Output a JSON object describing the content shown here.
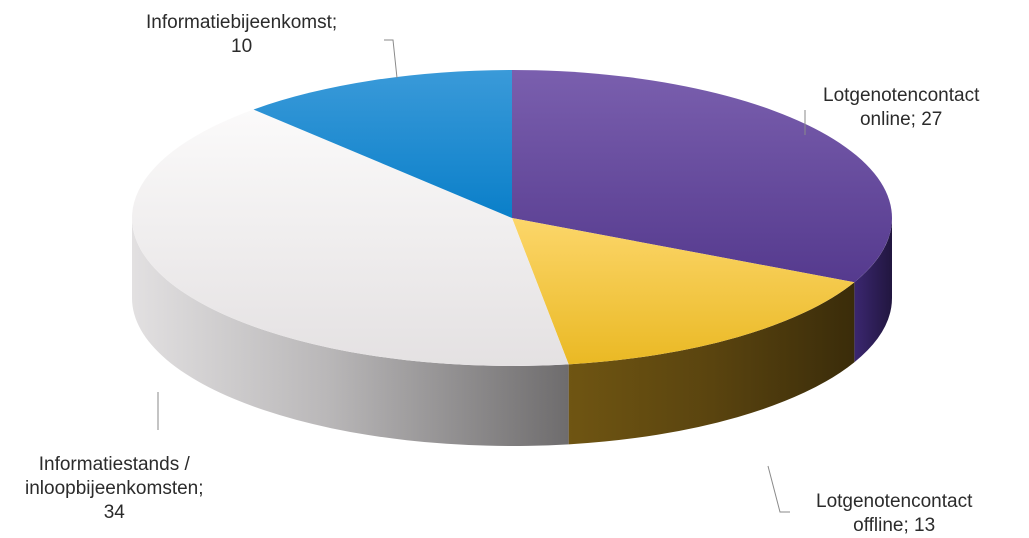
{
  "chart_data": {
    "type": "pie",
    "title": "",
    "slices": [
      {
        "label_lines": [
          "Lotgenotencontact",
          "online; 27"
        ],
        "category": "Lotgenotencontact online",
        "value": 27,
        "color": "#62459c"
      },
      {
        "label_lines": [
          "Lotgenotencontact",
          "offline; 13"
        ],
        "category": "Lotgenotencontact offline",
        "value": 13,
        "color": "#f5c23a"
      },
      {
        "label_lines": [
          "Informatiestands /",
          "inloopbijeenkomsten;",
          "34"
        ],
        "category": "Informatiestands / inloopbijeenkomsten",
        "value": 34,
        "color": "#efeced"
      },
      {
        "label_lines": [
          "Informatiebijeenkomst;",
          "10"
        ],
        "category": "Informatiebijeenkomst",
        "value": 10,
        "color": "#0d8bd4"
      }
    ]
  }
}
